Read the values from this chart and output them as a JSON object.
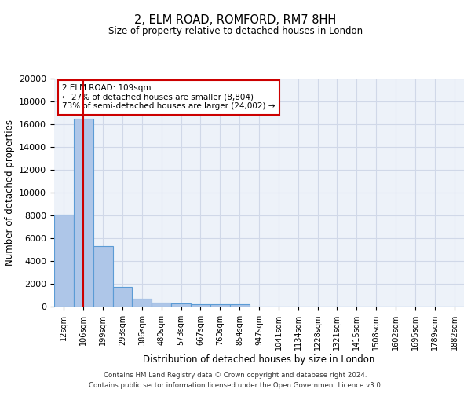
{
  "title": "2, ELM ROAD, ROMFORD, RM7 8HH",
  "subtitle": "Size of property relative to detached houses in London",
  "xlabel": "Distribution of detached houses by size in London",
  "ylabel": "Number of detached properties",
  "categories": [
    "12sqm",
    "106sqm",
    "199sqm",
    "293sqm",
    "386sqm",
    "480sqm",
    "573sqm",
    "667sqm",
    "760sqm",
    "854sqm",
    "947sqm",
    "1041sqm",
    "1134sqm",
    "1228sqm",
    "1321sqm",
    "1415sqm",
    "1508sqm",
    "1602sqm",
    "1695sqm",
    "1789sqm",
    "1882sqm"
  ],
  "bar_heights": [
    8100,
    16500,
    5300,
    1750,
    700,
    350,
    280,
    200,
    180,
    200,
    0,
    0,
    0,
    0,
    0,
    0,
    0,
    0,
    0,
    0,
    0
  ],
  "bar_color": "#aec6e8",
  "bar_edgecolor": "#5b9bd5",
  "bar_linewidth": 0.8,
  "vline_x": 1.0,
  "vline_color": "#cc0000",
  "vline_lw": 1.5,
  "ylim": [
    0,
    20000
  ],
  "yticks": [
    0,
    2000,
    4000,
    6000,
    8000,
    10000,
    12000,
    14000,
    16000,
    18000,
    20000
  ],
  "annotation_text": "2 ELM ROAD: 109sqm\n← 27% of detached houses are smaller (8,804)\n73% of semi-detached houses are larger (24,002) →",
  "annotation_box_color": "#cc0000",
  "grid_color": "#d0d8e8",
  "background_color": "#edf2f9",
  "footer_line1": "Contains HM Land Registry data © Crown copyright and database right 2024.",
  "footer_line2": "Contains public sector information licensed under the Open Government Licence v3.0."
}
